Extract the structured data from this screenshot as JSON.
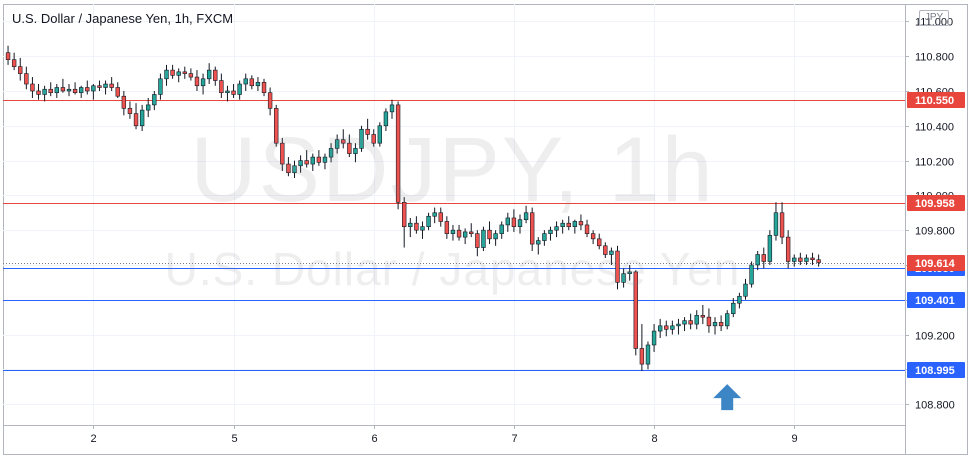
{
  "header": {
    "title": "U.S. Dollar / Japanese Yen, 1h, FXCM",
    "currency": "JPY"
  },
  "watermark": {
    "symbol": "USDJPY, 1h",
    "name": "U.S. Dollar / Japanese Yen"
  },
  "chart_data": {
    "type": "candlestick",
    "symbol": "USDJPY",
    "timeframe": "1h",
    "ylim": [
      108.68,
      111.1
    ],
    "y_ticks": [
      {
        "value": 111.0,
        "label": "111.000"
      },
      {
        "value": 110.8,
        "label": "110.800"
      },
      {
        "value": 110.6,
        "label": "110.600"
      },
      {
        "value": 110.4,
        "label": "110.400"
      },
      {
        "value": 110.2,
        "label": "110.200"
      },
      {
        "value": 110.0,
        "label": "110.000"
      },
      {
        "value": 109.8,
        "label": "109.800"
      },
      {
        "value": 109.6,
        "label": "109.600"
      },
      {
        "value": 109.4,
        "label": "109.400"
      },
      {
        "value": 109.2,
        "label": "109.200"
      },
      {
        "value": 109.0,
        "label": "109.000"
      },
      {
        "value": 108.8,
        "label": "108.800"
      }
    ],
    "x_ticks": [
      {
        "index": 14,
        "label": "2"
      },
      {
        "index": 37,
        "label": "5"
      },
      {
        "index": 60,
        "label": "6"
      },
      {
        "index": 83,
        "label": "7"
      },
      {
        "index": 106,
        "label": "8"
      },
      {
        "index": 129,
        "label": "9"
      }
    ],
    "x_count": 148,
    "price_lines": [
      {
        "value": 110.55,
        "label": "110.550",
        "color": "#e8453c"
      },
      {
        "value": 109.958,
        "label": "109.958",
        "color": "#e8453c"
      },
      {
        "value": 109.58,
        "label": "109.580",
        "color": "#2962ff"
      },
      {
        "value": 109.401,
        "label": "109.401",
        "color": "#2962ff"
      },
      {
        "value": 108.995,
        "label": "108.995",
        "color": "#2962ff"
      }
    ],
    "last_price": {
      "value": 109.614,
      "label": "109.614",
      "color": "#e8453c"
    },
    "arrow": {
      "index": 118,
      "value": 108.84,
      "direction": "up",
      "color": "#3d86c6"
    },
    "colors": {
      "up": "#26a69a",
      "down": "#ef5350",
      "wick": "#131722"
    },
    "candles_ohlc": [
      [
        110.82,
        110.86,
        110.75,
        110.78
      ],
      [
        110.78,
        110.82,
        110.72,
        110.74
      ],
      [
        110.74,
        110.79,
        110.66,
        110.7
      ],
      [
        110.7,
        110.74,
        110.61,
        110.64
      ],
      [
        110.64,
        110.68,
        110.56,
        110.6
      ],
      [
        110.6,
        110.64,
        110.55,
        110.58
      ],
      [
        110.58,
        110.63,
        110.54,
        110.61
      ],
      [
        110.61,
        110.65,
        110.57,
        110.59
      ],
      [
        110.59,
        110.64,
        110.56,
        110.62
      ],
      [
        110.62,
        110.67,
        110.59,
        110.6
      ],
      [
        110.6,
        110.64,
        110.57,
        110.61
      ],
      [
        110.61,
        110.65,
        110.58,
        110.59
      ],
      [
        110.59,
        110.63,
        110.56,
        110.62
      ],
      [
        110.62,
        110.66,
        110.58,
        110.6
      ],
      [
        110.6,
        110.64,
        110.55,
        110.63
      ],
      [
        110.63,
        110.66,
        110.6,
        110.62
      ],
      [
        110.62,
        110.66,
        110.58,
        110.64
      ],
      [
        110.64,
        110.68,
        110.6,
        110.62
      ],
      [
        110.62,
        110.65,
        110.56,
        110.57
      ],
      [
        110.57,
        110.6,
        110.46,
        110.5
      ],
      [
        110.5,
        110.54,
        110.44,
        110.47
      ],
      [
        110.47,
        110.53,
        110.38,
        110.4
      ],
      [
        110.4,
        110.52,
        110.37,
        110.49
      ],
      [
        110.49,
        110.56,
        110.45,
        110.52
      ],
      [
        110.52,
        110.6,
        110.49,
        110.58
      ],
      [
        110.58,
        110.7,
        110.55,
        110.67
      ],
      [
        110.67,
        110.75,
        110.63,
        110.72
      ],
      [
        110.72,
        110.75,
        110.67,
        110.69
      ],
      [
        110.69,
        110.73,
        110.65,
        110.71
      ],
      [
        110.71,
        110.74,
        110.67,
        110.7
      ],
      [
        110.7,
        110.73,
        110.66,
        110.68
      ],
      [
        110.68,
        110.72,
        110.6,
        110.63
      ],
      [
        110.63,
        110.7,
        110.58,
        110.67
      ],
      [
        110.67,
        110.76,
        110.64,
        110.72
      ],
      [
        110.72,
        110.74,
        110.63,
        110.66
      ],
      [
        110.66,
        110.7,
        110.56,
        110.59
      ],
      [
        110.59,
        110.63,
        110.54,
        110.6
      ],
      [
        110.6,
        110.64,
        110.56,
        110.58
      ],
      [
        110.58,
        110.66,
        110.55,
        110.64
      ],
      [
        110.64,
        110.7,
        110.6,
        110.67
      ],
      [
        110.67,
        110.69,
        110.61,
        110.63
      ],
      [
        110.63,
        110.68,
        110.6,
        110.65
      ],
      [
        110.65,
        110.67,
        110.57,
        110.59
      ],
      [
        110.59,
        110.62,
        110.46,
        110.5
      ],
      [
        110.5,
        110.52,
        110.28,
        110.3
      ],
      [
        110.3,
        110.33,
        110.14,
        110.18
      ],
      [
        110.18,
        110.22,
        110.11,
        110.13
      ],
      [
        110.13,
        110.2,
        110.1,
        110.17
      ],
      [
        110.17,
        110.23,
        110.13,
        110.2
      ],
      [
        110.2,
        110.26,
        110.16,
        110.18
      ],
      [
        110.18,
        110.24,
        110.14,
        110.22
      ],
      [
        110.22,
        110.26,
        110.17,
        110.19
      ],
      [
        110.19,
        110.24,
        110.15,
        110.22
      ],
      [
        110.22,
        110.3,
        110.19,
        110.27
      ],
      [
        110.27,
        110.35,
        110.24,
        110.32
      ],
      [
        110.32,
        110.38,
        110.27,
        110.3
      ],
      [
        110.3,
        110.35,
        110.22,
        110.24
      ],
      [
        110.24,
        110.3,
        110.19,
        110.27
      ],
      [
        110.27,
        110.4,
        110.25,
        110.38
      ],
      [
        110.38,
        110.44,
        110.32,
        110.35
      ],
      [
        110.35,
        110.38,
        110.28,
        110.3
      ],
      [
        110.3,
        110.42,
        110.28,
        110.4
      ],
      [
        110.4,
        110.5,
        110.37,
        110.48
      ],
      [
        110.48,
        110.55,
        110.44,
        110.52
      ],
      [
        110.52,
        110.54,
        109.92,
        109.96
      ],
      [
        109.96,
        109.99,
        109.7,
        109.82
      ],
      [
        109.82,
        109.87,
        109.76,
        109.84
      ],
      [
        109.84,
        109.88,
        109.78,
        109.8
      ],
      [
        109.8,
        109.85,
        109.75,
        109.82
      ],
      [
        109.82,
        109.9,
        109.8,
        109.88
      ],
      [
        109.88,
        109.93,
        109.84,
        109.9
      ],
      [
        109.9,
        109.93,
        109.82,
        109.85
      ],
      [
        109.85,
        109.88,
        109.75,
        109.78
      ],
      [
        109.78,
        109.83,
        109.74,
        109.8
      ],
      [
        109.8,
        109.83,
        109.74,
        109.76
      ],
      [
        109.76,
        109.81,
        109.72,
        109.79
      ],
      [
        109.79,
        109.84,
        109.76,
        109.78
      ],
      [
        109.78,
        109.8,
        109.65,
        109.7
      ],
      [
        109.7,
        109.82,
        109.68,
        109.8
      ],
      [
        109.8,
        109.85,
        109.72,
        109.75
      ],
      [
        109.75,
        109.8,
        109.71,
        109.78
      ],
      [
        109.78,
        109.85,
        109.75,
        109.83
      ],
      [
        109.83,
        109.9,
        109.79,
        109.87
      ],
      [
        109.87,
        109.92,
        109.79,
        109.82
      ],
      [
        109.82,
        109.89,
        109.78,
        109.86
      ],
      [
        109.86,
        109.94,
        109.84,
        109.9
      ],
      [
        109.9,
        109.93,
        109.68,
        109.72
      ],
      [
        109.72,
        109.76,
        109.66,
        109.74
      ],
      [
        109.74,
        109.8,
        109.71,
        109.78
      ],
      [
        109.78,
        109.82,
        109.74,
        109.8
      ],
      [
        109.8,
        109.85,
        109.76,
        109.82
      ],
      [
        109.82,
        109.86,
        109.78,
        109.84
      ],
      [
        109.84,
        109.88,
        109.8,
        109.82
      ],
      [
        109.82,
        109.86,
        109.78,
        109.85
      ],
      [
        109.85,
        109.89,
        109.8,
        109.83
      ],
      [
        109.83,
        109.86,
        109.76,
        109.78
      ],
      [
        109.78,
        109.8,
        109.72,
        109.75
      ],
      [
        109.75,
        109.78,
        109.69,
        109.71
      ],
      [
        109.71,
        109.73,
        109.64,
        109.66
      ],
      [
        109.66,
        109.7,
        109.6,
        109.68
      ],
      [
        109.68,
        109.71,
        109.46,
        109.5
      ],
      [
        109.5,
        109.58,
        109.47,
        109.55
      ],
      [
        109.55,
        109.6,
        109.51,
        109.56
      ],
      [
        109.56,
        109.57,
        109.08,
        109.12
      ],
      [
        109.12,
        109.26,
        108.99,
        109.03
      ],
      [
        109.03,
        109.16,
        109.0,
        109.14
      ],
      [
        109.14,
        109.26,
        109.1,
        109.22
      ],
      [
        109.22,
        109.29,
        109.18,
        109.25
      ],
      [
        109.25,
        109.28,
        109.19,
        109.23
      ],
      [
        109.23,
        109.28,
        109.2,
        109.25
      ],
      [
        109.25,
        109.29,
        109.2,
        109.26
      ],
      [
        109.26,
        109.3,
        109.22,
        109.28
      ],
      [
        109.28,
        109.32,
        109.23,
        109.26
      ],
      [
        109.26,
        109.34,
        109.23,
        109.31
      ],
      [
        109.31,
        109.37,
        109.26,
        109.3
      ],
      [
        109.3,
        109.35,
        109.21,
        109.25
      ],
      [
        109.25,
        109.3,
        109.2,
        109.27
      ],
      [
        109.27,
        109.31,
        109.22,
        109.25
      ],
      [
        109.25,
        109.34,
        109.23,
        109.32
      ],
      [
        109.32,
        109.41,
        109.3,
        109.38
      ],
      [
        109.38,
        109.44,
        109.35,
        109.42
      ],
      [
        109.42,
        109.52,
        109.4,
        109.49
      ],
      [
        109.49,
        109.62,
        109.47,
        109.6
      ],
      [
        109.6,
        109.68,
        109.57,
        109.66
      ],
      [
        109.66,
        109.7,
        109.58,
        109.62
      ],
      [
        109.62,
        109.8,
        109.6,
        109.77
      ],
      [
        109.77,
        109.96,
        109.74,
        109.9
      ],
      [
        109.9,
        109.96,
        109.72,
        109.76
      ],
      [
        109.76,
        109.8,
        109.58,
        109.62
      ],
      [
        109.62,
        109.66,
        109.59,
        109.64
      ],
      [
        109.64,
        109.67,
        109.6,
        109.62
      ],
      [
        109.62,
        109.66,
        109.6,
        109.64
      ],
      [
        109.64,
        109.67,
        109.6,
        109.63
      ],
      [
        109.63,
        109.66,
        109.59,
        109.614
      ]
    ]
  }
}
